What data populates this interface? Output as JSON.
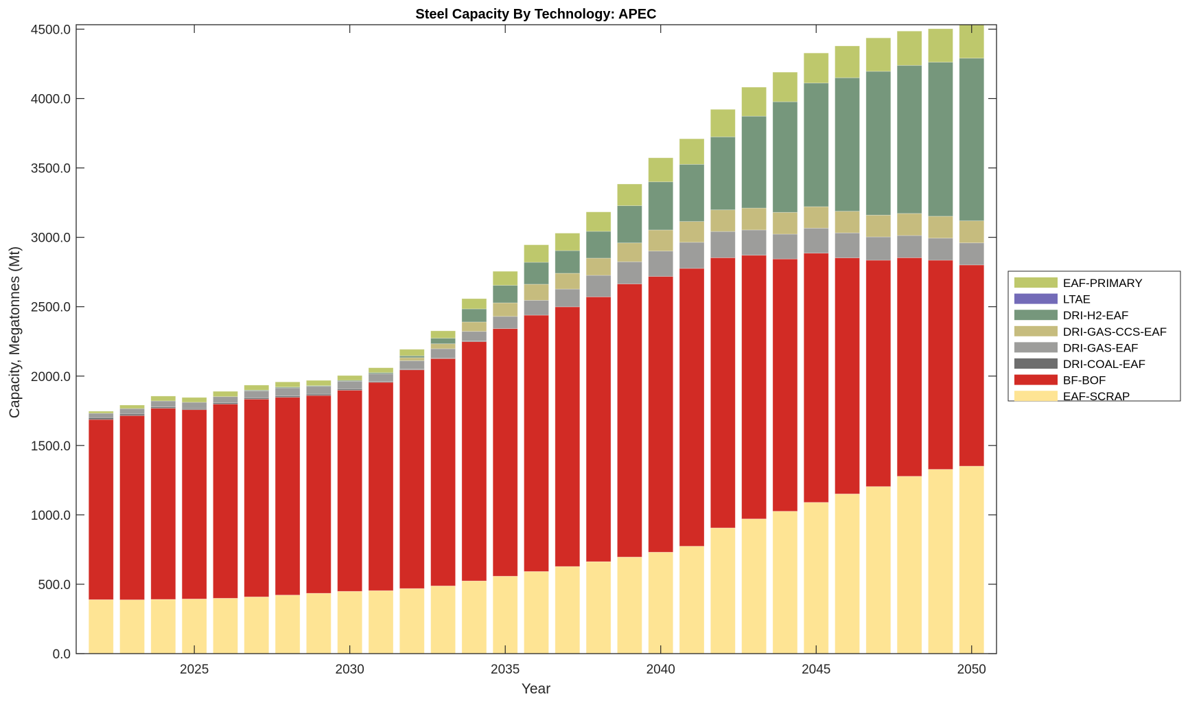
{
  "chart_data": {
    "type": "bar",
    "stacked": true,
    "title": "Steel Capacity By Technology: APEC",
    "xlabel": "Year",
    "ylabel": "Capacity, Megatonnes (Mt)",
    "ylim": [
      0,
      4532
    ],
    "xlim": [
      2021.2,
      2050.8
    ],
    "grid": false,
    "legend_position": "right",
    "y_ticks": [
      0,
      500,
      1000,
      1500,
      2000,
      2500,
      3000,
      3500,
      4000,
      4500
    ],
    "y_tick_labels": [
      "0.0",
      "500.0",
      "1000.0",
      "1500.0",
      "2000.0",
      "2500.0",
      "3000.0",
      "3500.0",
      "4000.0",
      "4500.0"
    ],
    "x_ticks": [
      2025,
      2030,
      2035,
      2040,
      2045,
      2050
    ],
    "x_tick_labels": [
      "2025",
      "2030",
      "2035",
      "2040",
      "2045",
      "2050"
    ],
    "categories": [
      2022,
      2023,
      2024,
      2025,
      2026,
      2027,
      2028,
      2029,
      2030,
      2031,
      2032,
      2033,
      2034,
      2035,
      2036,
      2037,
      2038,
      2039,
      2040,
      2041,
      2042,
      2043,
      2044,
      2045,
      2046,
      2047,
      2048,
      2049,
      2050
    ],
    "series": [
      {
        "name": "EAF-SCRAP",
        "color": "#fee494",
        "values": [
          389,
          388,
          391,
          394,
          399,
          409,
          422,
          435,
          449,
          454,
          469,
          488,
          524,
          558,
          592,
          628,
          663,
          696,
          731,
          774,
          906,
          971,
          1026,
          1090,
          1151,
          1204,
          1278,
          1328,
          1351
        ]
      },
      {
        "name": "BF-BOF",
        "color": "#d22b25",
        "values": [
          1298,
          1327,
          1377,
          1364,
          1399,
          1425,
          1425,
          1425,
          1449,
          1501,
          1576,
          1638,
          1724,
          1784,
          1847,
          1871,
          1908,
          1968,
          1987,
          2002,
          1947,
          1900,
          1818,
          1796,
          1701,
          1631,
          1575,
          1507,
          1450
        ]
      },
      {
        "name": "DRI-COAL-EAF",
        "color": "#6e6e6e",
        "values": [
          14,
          12,
          10,
          8,
          10,
          10,
          10,
          10,
          10,
          6,
          5,
          5,
          5,
          0,
          0,
          0,
          0,
          0,
          0,
          0,
          0,
          0,
          0,
          0,
          0,
          0,
          0,
          0,
          0
        ]
      },
      {
        "name": "DRI-GAS-EAF",
        "color": "#9d9d9b",
        "values": [
          31,
          39,
          43,
          45,
          44,
          50,
          58,
          56,
          55,
          56,
          61,
          66,
          69,
          88,
          107,
          128,
          155,
          160,
          183,
          188,
          189,
          182,
          179,
          180,
          180,
          168,
          160,
          159,
          159
        ]
      },
      {
        "name": "DRI-GAS-CCS-EAF",
        "color": "#c6bc7e",
        "values": [
          0,
          0,
          0,
          0,
          0,
          0,
          0,
          0,
          0,
          0,
          22,
          36,
          68,
          98,
          116,
          114,
          124,
          136,
          152,
          150,
          156,
          158,
          157,
          155,
          156,
          157,
          159,
          158,
          159
        ]
      },
      {
        "name": "DRI-H2-EAF",
        "color": "#76977c",
        "values": [
          0,
          0,
          0,
          0,
          0,
          5,
          6,
          5,
          6,
          8,
          13,
          40,
          94,
          126,
          158,
          163,
          193,
          268,
          347,
          412,
          526,
          662,
          797,
          891,
          962,
          1036,
          1067,
          1110,
          1172
        ]
      },
      {
        "name": "LTAE",
        "color": "#736bb8",
        "values": [
          0,
          0,
          0,
          0,
          0,
          0,
          0,
          0,
          0,
          0,
          0,
          0,
          0,
          0,
          0,
          0,
          0,
          0,
          0,
          0,
          0,
          0,
          0,
          0,
          0,
          0,
          0,
          0,
          0
        ]
      },
      {
        "name": "EAF-PRIMARY",
        "color": "#bec86c",
        "values": [
          15,
          25,
          35,
          35,
          38,
          36,
          37,
          38,
          35,
          35,
          47,
          53,
          74,
          101,
          126,
          126,
          140,
          156,
          173,
          184,
          198,
          209,
          213,
          216,
          229,
          241,
          247,
          241,
          241
        ]
      }
    ],
    "legend_order": [
      "EAF-PRIMARY",
      "LTAE",
      "DRI-H2-EAF",
      "DRI-GAS-CCS-EAF",
      "DRI-GAS-EAF",
      "DRI-COAL-EAF",
      "BF-BOF",
      "EAF-SCRAP"
    ]
  }
}
